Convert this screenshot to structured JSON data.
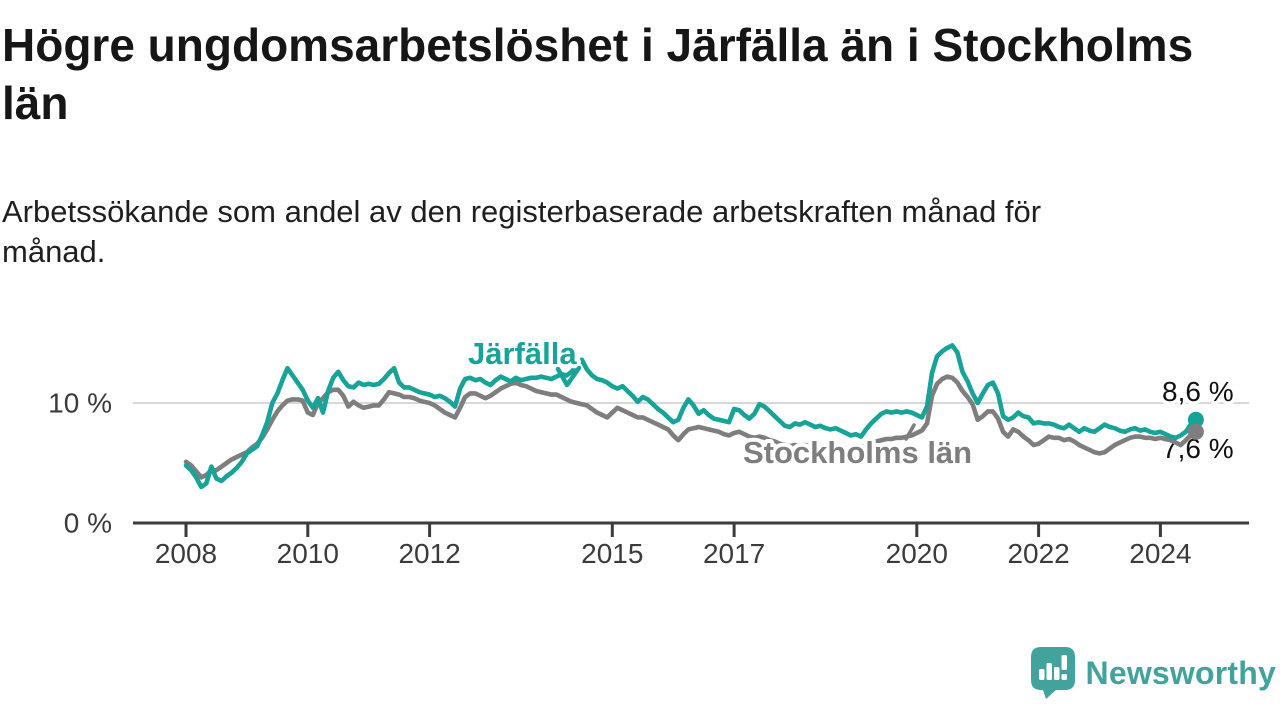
{
  "header": {
    "title": "Högre ungdomsarbetslöshet i Järfälla än i Stockholms län",
    "title_lines": [
      "Högre ungdomsarbetslöshet i Järfälla än i Stockholms",
      "län"
    ],
    "subtitle": "Arbetssökande som andel av den registerbaserade arbetskraften månad för månad.",
    "subtitle_lines": [
      "Arbetssökande som andel av den registerbaserade arbetskraften månad för",
      "månad."
    ]
  },
  "chart_data": {
    "type": "line",
    "title": "Högre ungdomsarbetslöshet i Järfälla än i Stockholms län",
    "subtitle": "Arbetssökande som andel av den registerbaserade arbetskraften månad för månad.",
    "unit": "%",
    "frequency": "monthly",
    "x_start": "2008-01",
    "x_end": "2024-08",
    "x_tick_labels": [
      "2008",
      "2010",
      "2012",
      "2015",
      "2017",
      "2020",
      "2022",
      "2024"
    ],
    "y_ticks": [
      {
        "label": "10 %",
        "value": 10
      },
      {
        "label": "0 %",
        "value": 0
      }
    ],
    "ylim": [
      0,
      16
    ],
    "grid_values": [
      10
    ],
    "grid_on": true,
    "legend_position": "inline-labels",
    "colors": {
      "axis": "#3b3b3b",
      "grid": "#d8d8d8",
      "value_label_text": "#111111"
    },
    "series": [
      {
        "name": "Järfälla",
        "color": "#17A398",
        "end_label": "8,6 %",
        "end_value": 8.6,
        "values": [
          4.8,
          4.4,
          3.8,
          3.0,
          3.3,
          4.7,
          3.7,
          3.5,
          3.9,
          4.2,
          4.6,
          5.1,
          5.8,
          6.1,
          6.4,
          7.3,
          8.4,
          10.0,
          10.8,
          11.9,
          12.9,
          12.3,
          11.7,
          11.1,
          10.2,
          9.6,
          10.4,
          9.2,
          11.0,
          12.1,
          12.6,
          11.9,
          11.4,
          11.3,
          11.7,
          11.5,
          11.6,
          11.5,
          11.6,
          12.0,
          12.5,
          12.9,
          11.7,
          11.3,
          11.3,
          11.1,
          10.9,
          10.8,
          10.7,
          10.5,
          10.6,
          10.4,
          10.1,
          9.7,
          11.2,
          12.0,
          12.1,
          11.9,
          12.0,
          11.7,
          11.5,
          11.9,
          12.2,
          12.0,
          11.8,
          12.1,
          11.9,
          12.0,
          12.1,
          12.1,
          12.2,
          12.1,
          12.0,
          12.2,
          12.4,
          12.3,
          12.6,
          13.1,
          13.6,
          12.8,
          12.3,
          12.0,
          11.9,
          11.7,
          11.4,
          11.2,
          11.4,
          11.0,
          10.6,
          10.1,
          10.5,
          10.3,
          9.9,
          9.5,
          9.2,
          8.8,
          8.4,
          8.6,
          9.6,
          10.3,
          9.8,
          9.1,
          9.4,
          9.0,
          8.7,
          8.6,
          8.5,
          8.4,
          9.5,
          9.4,
          9.0,
          8.7,
          9.1,
          9.9,
          9.7,
          9.3,
          8.9,
          8.5,
          8.1,
          8.0,
          8.3,
          8.2,
          8.4,
          8.2,
          8.0,
          8.1,
          7.9,
          7.8,
          7.9,
          7.7,
          7.5,
          7.3,
          7.4,
          7.2,
          7.8,
          8.3,
          8.7,
          9.1,
          9.3,
          9.2,
          9.3,
          9.2,
          9.3,
          9.2,
          9.0,
          8.8,
          9.7,
          12.5,
          13.9,
          14.3,
          14.6,
          14.8,
          14.2,
          12.6,
          11.8,
          10.8,
          10.0,
          10.8,
          11.5,
          11.7,
          10.8,
          8.9,
          8.6,
          8.8,
          9.2,
          8.9,
          8.8,
          8.3,
          8.4,
          8.3,
          8.3,
          8.2,
          8.0,
          7.9,
          8.2,
          7.9,
          7.6,
          7.9,
          7.7,
          7.6,
          7.9,
          8.2,
          8.0,
          7.9,
          7.7,
          7.6,
          7.8,
          7.9,
          7.7,
          7.8,
          7.6,
          7.5,
          7.6,
          7.4,
          7.2,
          7.1,
          7.3,
          7.6,
          8.2,
          8.6
        ]
      },
      {
        "name": "Stockholms län",
        "color": "#7E7E7E",
        "end_label": "7,6 %",
        "end_value": 7.6,
        "values": [
          5.1,
          4.8,
          4.3,
          3.8,
          4.0,
          4.4,
          4.4,
          4.7,
          5.0,
          5.3,
          5.5,
          5.7,
          5.9,
          6.3,
          6.6,
          7.1,
          7.8,
          8.6,
          9.3,
          9.8,
          10.2,
          10.3,
          10.3,
          10.2,
          9.2,
          9.0,
          10.0,
          10.4,
          10.9,
          11.1,
          11.1,
          10.6,
          9.7,
          10.1,
          9.8,
          9.6,
          9.7,
          9.8,
          9.8,
          10.3,
          10.9,
          10.8,
          10.7,
          10.5,
          10.5,
          10.4,
          10.2,
          10.1,
          10.0,
          9.8,
          9.5,
          9.2,
          9.0,
          8.8,
          9.6,
          10.5,
          10.8,
          10.8,
          10.6,
          10.4,
          10.6,
          10.9,
          11.2,
          11.4,
          11.6,
          11.7,
          11.5,
          11.4,
          11.2,
          11.0,
          10.9,
          10.8,
          10.7,
          10.7,
          10.5,
          10.3,
          10.1,
          10.0,
          9.9,
          9.8,
          9.5,
          9.2,
          9.0,
          8.8,
          9.2,
          9.6,
          9.4,
          9.2,
          9.0,
          8.8,
          8.8,
          8.6,
          8.4,
          8.2,
          8.0,
          7.8,
          7.3,
          6.9,
          7.4,
          7.8,
          7.9,
          8.0,
          7.9,
          7.8,
          7.7,
          7.6,
          7.4,
          7.3,
          7.5,
          7.6,
          7.4,
          7.2,
          7.1,
          7.2,
          7.1,
          6.9,
          6.8,
          6.6,
          6.5,
          6.4,
          6.5,
          6.4,
          6.5,
          6.4,
          6.3,
          6.4,
          6.3,
          6.2,
          6.3,
          6.2,
          6.2,
          6.3,
          6.4,
          6.3,
          6.5,
          6.6,
          6.8,
          6.9,
          7.0,
          7.0,
          7.1,
          7.1,
          7.2,
          7.3,
          7.5,
          7.7,
          8.3,
          10.6,
          11.6,
          12.0,
          12.2,
          12.1,
          11.7,
          11.0,
          10.5,
          9.9,
          8.6,
          8.9,
          9.3,
          9.3,
          8.7,
          7.6,
          7.2,
          7.8,
          7.6,
          7.2,
          6.9,
          6.5,
          6.6,
          6.9,
          7.2,
          7.1,
          7.1,
          6.9,
          7.0,
          6.8,
          6.5,
          6.3,
          6.1,
          5.9,
          5.8,
          5.9,
          6.2,
          6.5,
          6.7,
          6.9,
          7.1,
          7.2,
          7.2,
          7.1,
          7.1,
          7.0,
          7.1,
          7.0,
          6.9,
          6.7,
          6.5,
          6.9,
          7.3,
          7.6
        ]
      }
    ]
  },
  "footer": {
    "brand": "Newsworthy",
    "brand_color": "#41A39B"
  }
}
